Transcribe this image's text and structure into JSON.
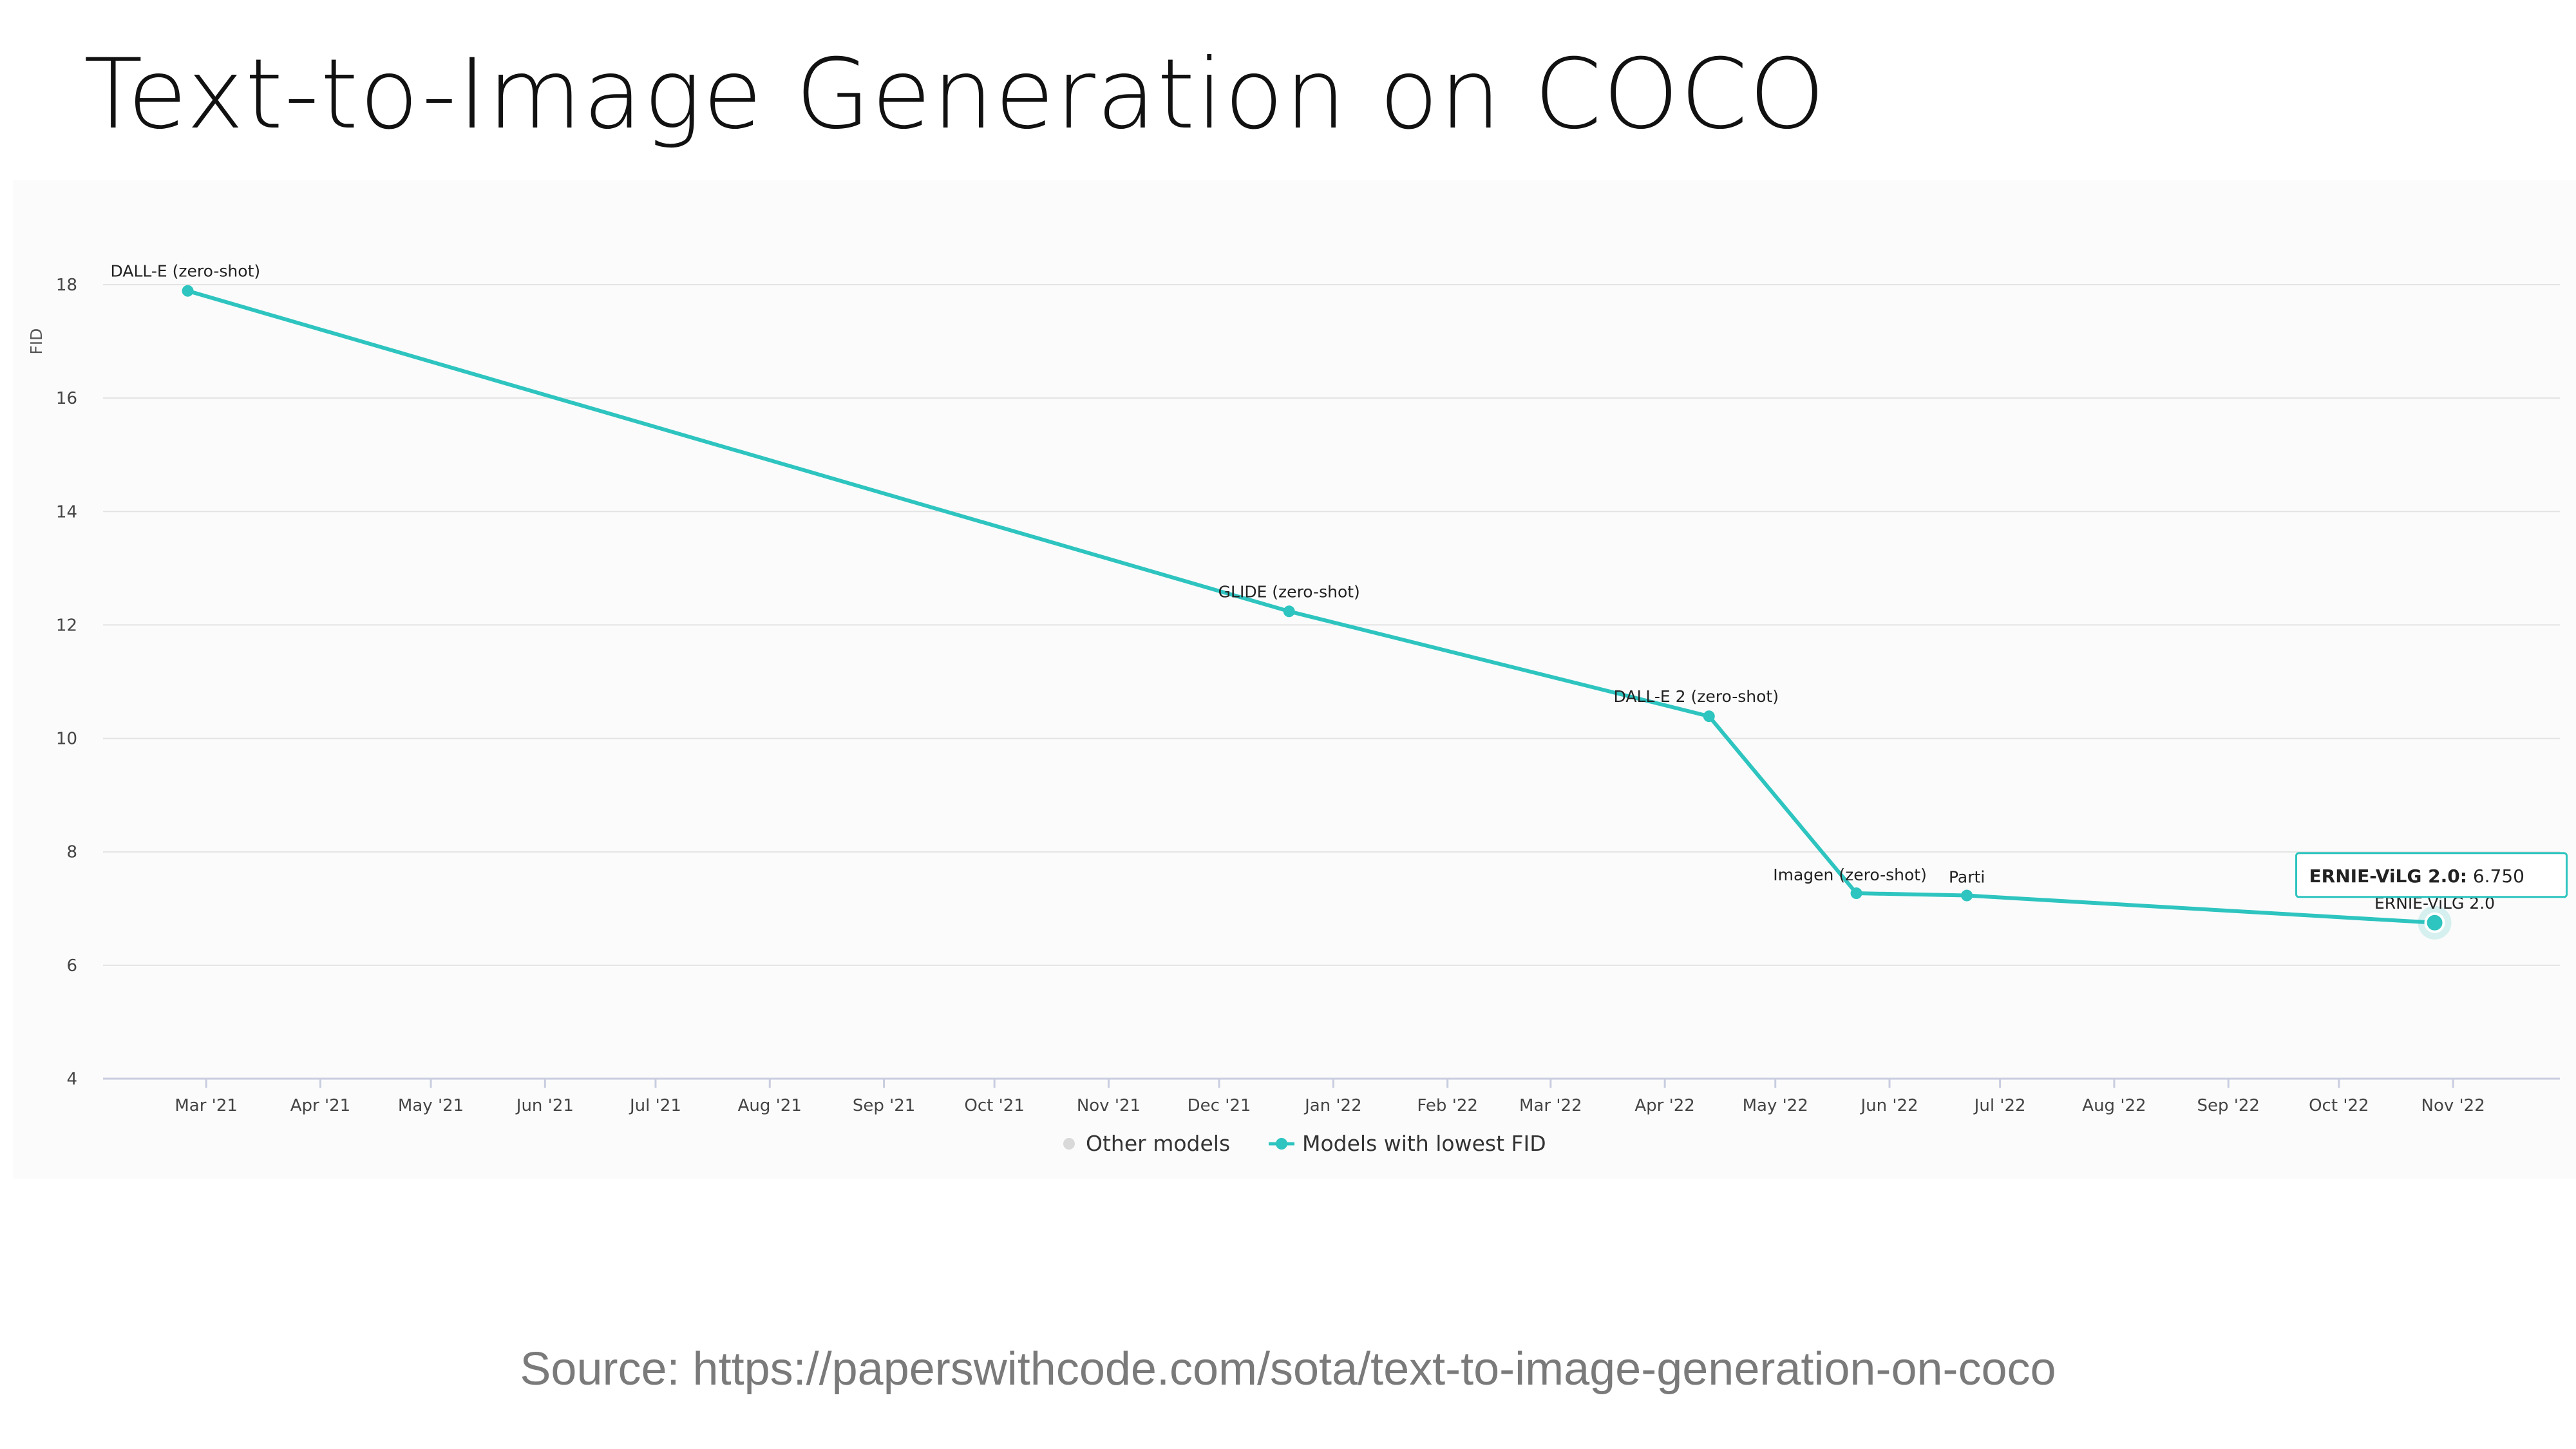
{
  "slide": {
    "title": "Text-to-Image Generation on COCO",
    "source": "Source: https://paperswithcode.com/sota/text-to-image-generation-on-coco"
  },
  "chart_data": {
    "type": "line",
    "title": "",
    "xlabel": "",
    "ylabel": "FID",
    "ylim": [
      4,
      18
    ],
    "yticks": [
      4,
      6,
      8,
      10,
      12,
      14,
      16,
      18
    ],
    "xlim": [
      "2021-02-01",
      "2022-11-30"
    ],
    "xticks": [
      {
        "label": "Mar '21",
        "date": "2021-03-01"
      },
      {
        "label": "Apr '21",
        "date": "2021-04-01"
      },
      {
        "label": "May '21",
        "date": "2021-05-01"
      },
      {
        "label": "Jun '21",
        "date": "2021-06-01"
      },
      {
        "label": "Jul '21",
        "date": "2021-07-01"
      },
      {
        "label": "Aug '21",
        "date": "2021-08-01"
      },
      {
        "label": "Sep '21",
        "date": "2021-09-01"
      },
      {
        "label": "Oct '21",
        "date": "2021-10-01"
      },
      {
        "label": "Nov '21",
        "date": "2021-11-01"
      },
      {
        "label": "Dec '21",
        "date": "2021-12-01"
      },
      {
        "label": "Jan '22",
        "date": "2022-01-01"
      },
      {
        "label": "Feb '22",
        "date": "2022-02-01"
      },
      {
        "label": "Mar '22",
        "date": "2022-03-01"
      },
      {
        "label": "Apr '22",
        "date": "2022-04-01"
      },
      {
        "label": "May '22",
        "date": "2022-05-01"
      },
      {
        "label": "Jun '22",
        "date": "2022-06-01"
      },
      {
        "label": "Jul '22",
        "date": "2022-07-01"
      },
      {
        "label": "Aug '22",
        "date": "2022-08-01"
      },
      {
        "label": "Sep '22",
        "date": "2022-09-01"
      },
      {
        "label": "Oct '22",
        "date": "2022-10-01"
      },
      {
        "label": "Nov '22",
        "date": "2022-11-01"
      }
    ],
    "legend": [
      {
        "name": "Other models",
        "color": "#d9d9d9",
        "marker": "dot"
      },
      {
        "name": "Models with lowest FID",
        "color": "#2ec4bf",
        "marker": "line-dot"
      }
    ],
    "series": [
      {
        "name": "Models with lowest FID",
        "color": "#2ec4bf",
        "points": [
          {
            "label": "DALL-E (zero-shot)",
            "date": "2021-02-24",
            "value": 17.89
          },
          {
            "label": "GLIDE (zero-shot)",
            "date": "2021-12-20",
            "value": 12.24
          },
          {
            "label": "DALL-E 2 (zero-shot)",
            "date": "2022-04-13",
            "value": 10.39
          },
          {
            "label": "Imagen (zero-shot)",
            "date": "2022-05-23",
            "value": 7.27
          },
          {
            "label": "Parti",
            "date": "2022-06-22",
            "value": 7.23
          },
          {
            "label": "ERNIE-ViLG 2.0",
            "date": "2022-10-27",
            "value": 6.75
          }
        ]
      }
    ],
    "tooltip": {
      "name": "ERNIE-ViLG 2.0:",
      "value": "6.750"
    }
  }
}
